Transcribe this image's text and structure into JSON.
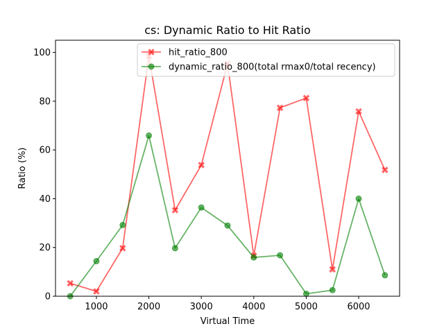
{
  "chart_data": {
    "type": "line",
    "title": "cs: Dynamic Ratio to Hit Ratio",
    "xlabel": "Virtual Time",
    "ylabel": "Ratio (%)",
    "xlim": [
      220,
      6780
    ],
    "ylim": [
      0,
      105
    ],
    "xticks": [
      1000,
      2000,
      3000,
      4000,
      5000,
      6000
    ],
    "yticks": [
      0,
      20,
      40,
      60,
      80,
      100
    ],
    "grid": false,
    "legend_position": "upper center",
    "x": [
      500,
      1000,
      1500,
      2000,
      2500,
      3000,
      3500,
      4000,
      4500,
      5000,
      5500,
      6000,
      6500
    ],
    "series": [
      {
        "name": "hit_ratio_800",
        "color": "#ff0000",
        "marker": "x-filled",
        "values": [
          5.3,
          2.0,
          19.7,
          98.5,
          35.3,
          53.8,
          95.4,
          16.6,
          77.3,
          81.3,
          11.0,
          75.8,
          51.8
        ]
      },
      {
        "name": "dynamic_ratio_800(total rmax0/total recency)",
        "color": "#008000",
        "marker": "circle",
        "values": [
          0.0,
          14.4,
          29.2,
          65.9,
          19.7,
          36.4,
          29.0,
          15.9,
          16.8,
          1.0,
          2.5,
          40.0,
          8.6
        ]
      }
    ]
  }
}
